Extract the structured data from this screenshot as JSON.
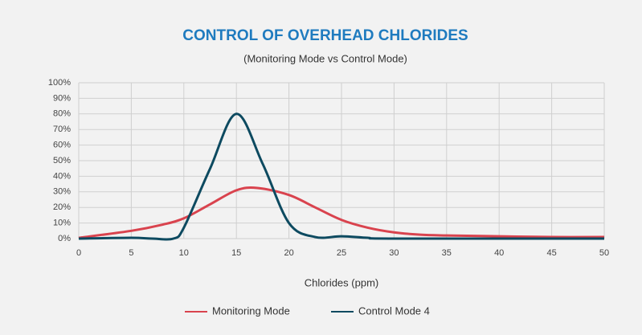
{
  "chart_data": {
    "type": "line",
    "title": "CONTROL OF OVERHEAD CHLORIDES",
    "subtitle": "(Monitoring Mode vs Control Mode)",
    "x_label": "Chlorides (ppm)",
    "xlim": [
      0,
      50
    ],
    "xticks": [
      0,
      5,
      10,
      15,
      20,
      25,
      30,
      35,
      40,
      45,
      50
    ],
    "ylim": [
      0,
      100
    ],
    "yticks": [
      {
        "value": 0,
        "label": "0%"
      },
      {
        "value": 10,
        "label": "10%"
      },
      {
        "value": 20,
        "label": "20%"
      },
      {
        "value": 30,
        "label": "30%"
      },
      {
        "value": 40,
        "label": "40%"
      },
      {
        "value": 50,
        "label": "50%"
      },
      {
        "value": 60,
        "label": "60%"
      },
      {
        "value": 70,
        "label": "70%"
      },
      {
        "value": 80,
        "label": "80%"
      },
      {
        "value": 90,
        "label": "90%"
      },
      {
        "value": 100,
        "label": "100%"
      }
    ],
    "grid": true,
    "legend": "bottom",
    "series": [
      {
        "name": "Monitoring Mode",
        "color": "#d9434e",
        "x": [
          0,
          5,
          8,
          10,
          12.5,
          15,
          17,
          20,
          22.5,
          25,
          27.5,
          30,
          32.5,
          35,
          40,
          45,
          50
        ],
        "values": [
          0.5,
          5,
          9,
          13,
          22,
          31,
          32.5,
          28,
          20,
          12,
          7,
          4,
          2.5,
          2,
          1.5,
          1,
          1
        ]
      },
      {
        "name": "Control Mode 4",
        "color": "#0d4a60",
        "x": [
          0,
          5,
          7,
          9,
          10,
          12.5,
          15,
          17.5,
          20,
          22.5,
          25,
          27.5,
          30,
          50
        ],
        "values": [
          0,
          0.5,
          0,
          0,
          7,
          45,
          80,
          48,
          10,
          1,
          1.5,
          0.5,
          0,
          0
        ]
      }
    ]
  }
}
